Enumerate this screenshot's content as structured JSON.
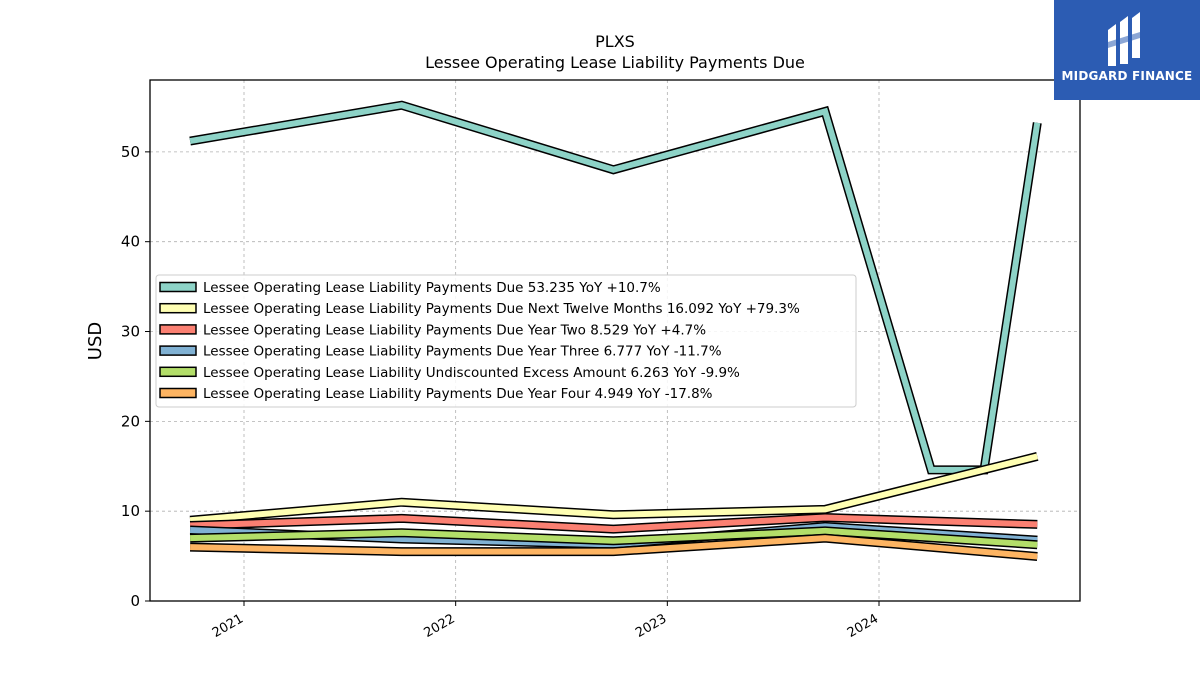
{
  "brand": {
    "name": "MIDGARD FINANCE",
    "logo_icon": "midgard-logo-icon"
  },
  "chart_data": {
    "type": "line",
    "title": "PLXS",
    "subtitle": "Lessee Operating Lease Liability Payments Due",
    "ylabel": "USD",
    "xlabel": "",
    "ylim": [
      0,
      58
    ],
    "yticks": [
      0,
      10,
      20,
      30,
      40,
      50
    ],
    "xticks": [
      "2021",
      "2022",
      "2023",
      "2024"
    ],
    "grid": true,
    "legend_position": "center-left",
    "x": [
      "2020-09-30",
      "2021-09-30",
      "2022-09-30",
      "2023-09-30",
      "2024-03-31",
      "2024-06-30",
      "2024-09-30"
    ],
    "series": [
      {
        "name": "Lessee Operating Lease Liability Payments Due",
        "legend": "Lessee Operating Lease Liability Payments Due  53.235 YoY +10.7%",
        "color": "#8dd3c7",
        "values": [
          51.2,
          55.2,
          48.0,
          54.5,
          14.6,
          14.6,
          53.235
        ]
      },
      {
        "name": "Lessee Operating Lease Liability Payments Due Next Twelve Months",
        "legend": "Lessee Operating Lease Liability Payments Due Next Twelve Months  16.092 YoY +79.3%",
        "color": "#ffffb3",
        "values": [
          9.0,
          11.0,
          9.6,
          10.2,
          null,
          null,
          16.092
        ]
      },
      {
        "name": "Lessee Operating Lease Liability Payments Due Year Two",
        "legend": "Lessee Operating Lease Liability Payments Due Year Two  8.529 YoY +4.7%",
        "color": "#fb8072",
        "values": [
          8.4,
          9.2,
          8.0,
          9.3,
          null,
          null,
          8.529
        ]
      },
      {
        "name": "Lessee Operating Lease Liability Payments Due Year Three",
        "legend": "Lessee Operating Lease Liability Payments Due Year Three  6.777 YoY -11.7%",
        "color": "#80b1d3",
        "values": [
          7.9,
          6.9,
          6.3,
          8.3,
          null,
          null,
          6.777
        ]
      },
      {
        "name": "Lessee Operating Lease Liability Undiscounted Excess Amount",
        "legend": "Lessee Operating Lease Liability Undiscounted Excess Amount  6.263 YoY -9.9%",
        "color": "#b3de69",
        "values": [
          7.0,
          7.6,
          6.7,
          7.8,
          null,
          null,
          6.263
        ]
      },
      {
        "name": "Lessee Operating Lease Liability Payments Due Year Four",
        "legend": "Lessee Operating Lease Liability Payments Due Year Four  4.949 YoY -17.8%",
        "color": "#fdb462",
        "values": [
          6.0,
          5.5,
          5.5,
          7.0,
          null,
          null,
          4.949
        ]
      }
    ]
  }
}
